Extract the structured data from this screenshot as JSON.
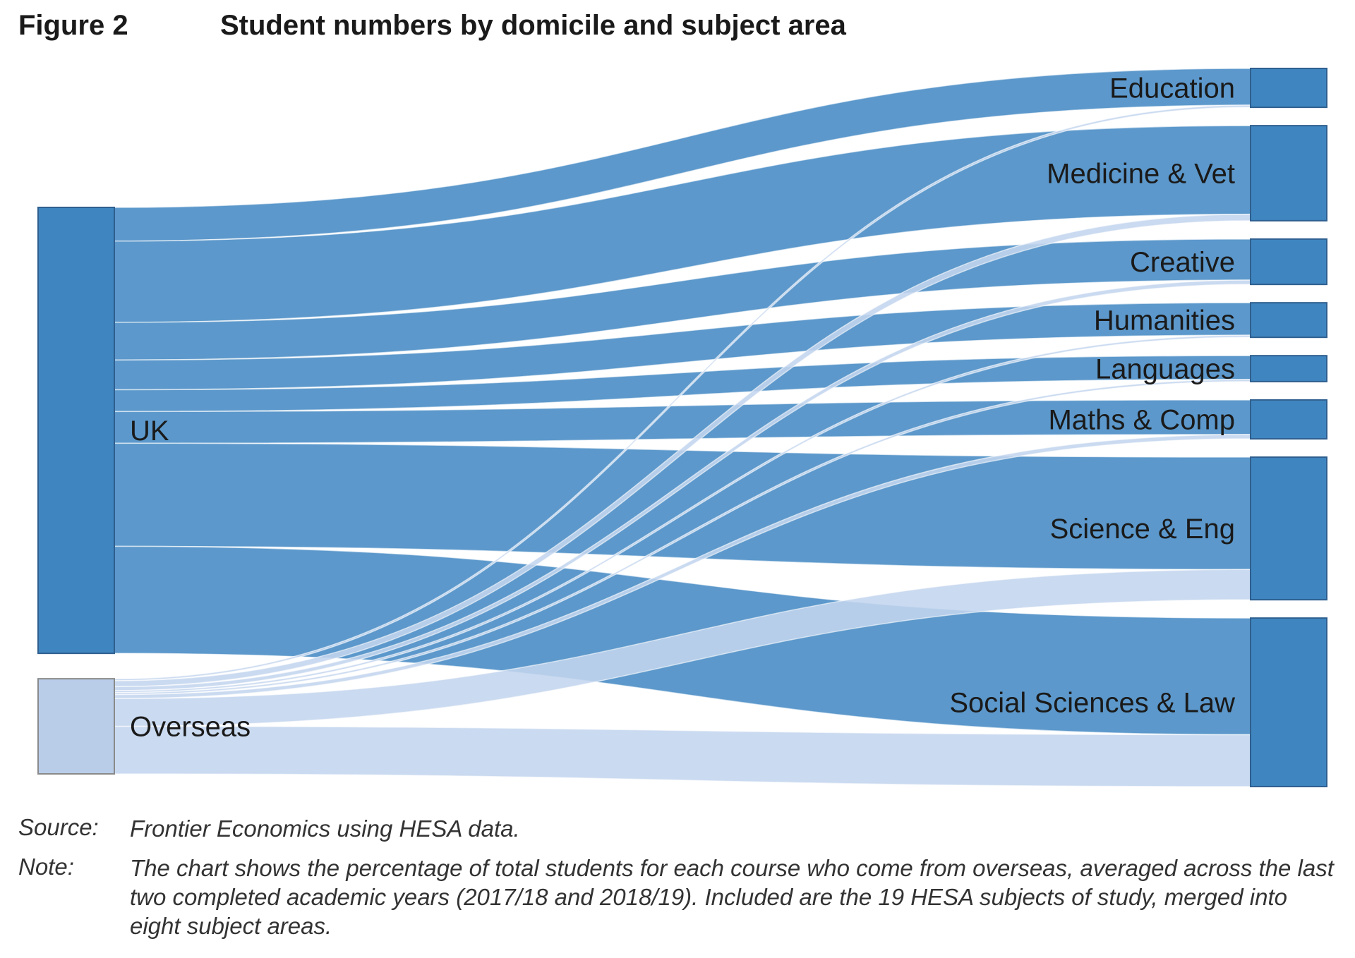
{
  "figure_label": "Figure 2",
  "title": "Student numbers by domicile and subject area",
  "colors": {
    "uk_node": "#3f86c0",
    "uk_flow": "#4e8fc7",
    "overseas_node": "#b9cde9",
    "overseas_flow": "#c3d5ee",
    "node_border": "#2f5f8f",
    "text": "#1a1a1a"
  },
  "footnotes": {
    "source_label": "Source:",
    "source_text": "Frontier Economics using HESA data.",
    "note_label": "Note:",
    "note_text": "The chart shows the percentage of total students for each course who come from overseas, averaged across the last two completed academic years (2017/18 and 2018/19). Included are the 19 HESA subjects of study, merged into eight subject areas."
  },
  "chart_data": {
    "type": "sankey",
    "title": "Student numbers by domicile and subject area",
    "sources": [
      "UK",
      "Overseas"
    ],
    "targets": [
      "Education",
      "Medicine & Vet",
      "Creative",
      "Humanities",
      "Languages",
      "Maths & Comp",
      "Science & Eng",
      "Social Sciences & Law"
    ],
    "flows": [
      {
        "from": "UK",
        "to": "Education",
        "value": 8.5
      },
      {
        "from": "UK",
        "to": "Medicine & Vet",
        "value": 20.5
      },
      {
        "from": "UK",
        "to": "Creative",
        "value": 9.5
      },
      {
        "from": "UK",
        "to": "Humanities",
        "value": 7.5
      },
      {
        "from": "UK",
        "to": "Languages",
        "value": 5.5
      },
      {
        "from": "UK",
        "to": "Maths & Comp",
        "value": 8
      },
      {
        "from": "UK",
        "to": "Science & Eng",
        "value": 26
      },
      {
        "from": "UK",
        "to": "Social Sciences & Law",
        "value": 27
      },
      {
        "from": "Overseas",
        "to": "Education",
        "value": 0.5
      },
      {
        "from": "Overseas",
        "to": "Medicine & Vet",
        "value": 1.5
      },
      {
        "from": "Overseas",
        "to": "Creative",
        "value": 1
      },
      {
        "from": "Overseas",
        "to": "Humanities",
        "value": 0.5
      },
      {
        "from": "Overseas",
        "to": "Languages",
        "value": 0.5
      },
      {
        "from": "Overseas",
        "to": "Maths & Comp",
        "value": 1
      },
      {
        "from": "Overseas",
        "to": "Science & Eng",
        "value": 7
      },
      {
        "from": "Overseas",
        "to": "Social Sciences & Law",
        "value": 12
      }
    ]
  }
}
